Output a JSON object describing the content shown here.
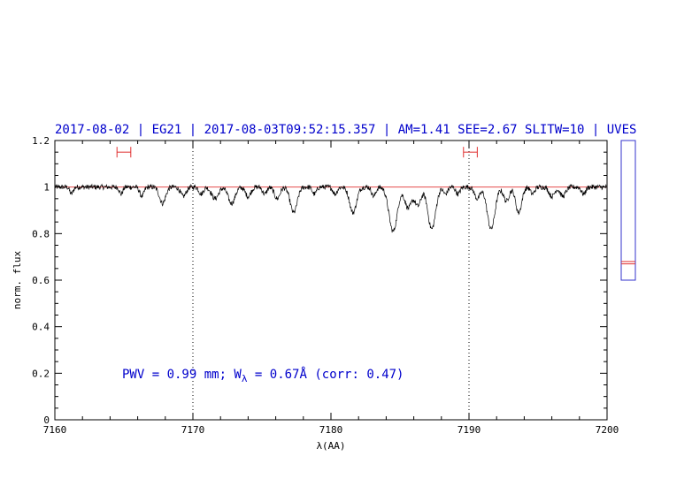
{
  "chart_data": {
    "type": "line",
    "title": "2017-08-02 | EG21 | 2017-08-03T09:52:15.357 | AM=1.41 SEE=2.67 SLITW=10 | UVES",
    "xlabel": "λ(AA)",
    "ylabel": "norm. flux",
    "xlim": [
      7160,
      7200
    ],
    "ylim": [
      0,
      1.2
    ],
    "xticks": [
      7160,
      7170,
      7180,
      7190,
      7200
    ],
    "xtick_labels": [
      "7160",
      "7170",
      "7180",
      "7190",
      "7200"
    ],
    "yticks": [
      0,
      0.2,
      0.4,
      0.6,
      0.8,
      1,
      1.2
    ],
    "ytick_labels": [
      "0",
      "0.2",
      "0.4",
      "0.6",
      "0.8",
      "1",
      "1.2"
    ],
    "grid": false,
    "continuum": {
      "y": 1.0,
      "color": "#e03030"
    },
    "vertical_markers": [
      7170,
      7190
    ],
    "error_bars": [
      {
        "x1": 7164.5,
        "x2": 7165.5,
        "y": 1.15,
        "color": "#e03030"
      },
      {
        "x1": 7189.6,
        "x2": 7190.6,
        "y": 1.15,
        "color": "#e03030"
      }
    ],
    "absorption_lines": [
      {
        "x": 7161.2,
        "depth": 0.03,
        "width": 0.12
      },
      {
        "x": 7164.8,
        "depth": 0.03,
        "width": 0.12
      },
      {
        "x": 7166.3,
        "depth": 0.04,
        "width": 0.15
      },
      {
        "x": 7167.8,
        "depth": 0.07,
        "width": 0.22
      },
      {
        "x": 7169.3,
        "depth": 0.04,
        "width": 0.2
      },
      {
        "x": 7170.6,
        "depth": 0.03,
        "width": 0.15
      },
      {
        "x": 7171.6,
        "depth": 0.05,
        "width": 0.25
      },
      {
        "x": 7172.8,
        "depth": 0.07,
        "width": 0.25
      },
      {
        "x": 7174.0,
        "depth": 0.04,
        "width": 0.2
      },
      {
        "x": 7175.2,
        "depth": 0.03,
        "width": 0.15
      },
      {
        "x": 7176.1,
        "depth": 0.05,
        "width": 0.2
      },
      {
        "x": 7177.3,
        "depth": 0.11,
        "width": 0.25
      },
      {
        "x": 7178.8,
        "depth": 0.03,
        "width": 0.15
      },
      {
        "x": 7180.3,
        "depth": 0.03,
        "width": 0.15
      },
      {
        "x": 7181.6,
        "depth": 0.11,
        "width": 0.25
      },
      {
        "x": 7183.1,
        "depth": 0.04,
        "width": 0.15
      },
      {
        "x": 7184.5,
        "depth": 0.19,
        "width": 0.3
      },
      {
        "x": 7185.6,
        "depth": 0.09,
        "width": 0.25
      },
      {
        "x": 7186.3,
        "depth": 0.08,
        "width": 0.22
      },
      {
        "x": 7187.3,
        "depth": 0.18,
        "width": 0.28
      },
      {
        "x": 7188.3,
        "depth": 0.03,
        "width": 0.15
      },
      {
        "x": 7189.2,
        "depth": 0.03,
        "width": 0.15
      },
      {
        "x": 7190.6,
        "depth": 0.05,
        "width": 0.2
      },
      {
        "x": 7191.6,
        "depth": 0.18,
        "width": 0.28
      },
      {
        "x": 7192.7,
        "depth": 0.06,
        "width": 0.2
      },
      {
        "x": 7193.6,
        "depth": 0.11,
        "width": 0.22
      },
      {
        "x": 7194.6,
        "depth": 0.03,
        "width": 0.15
      },
      {
        "x": 7196.0,
        "depth": 0.04,
        "width": 0.2
      },
      {
        "x": 7196.8,
        "depth": 0.04,
        "width": 0.2
      },
      {
        "x": 7198.3,
        "depth": 0.03,
        "width": 0.15
      }
    ],
    "annotation": {
      "prefix": "PWV = 0.99 mm; W",
      "subscript": "λ",
      "suffix": " = 0.67Å (corr: 0.47)"
    },
    "side_panel": {
      "ylim": [
        0,
        1.2
      ],
      "range": [
        0.6,
        1.2
      ],
      "markers": [
        0.68,
        0.67
      ],
      "marker_color": "#e03030",
      "frame_color": "#3333cc"
    },
    "colors": {
      "spectrum": "#000000",
      "continuum": "#e03030",
      "title": "#0000cc",
      "annotation": "#0000cc"
    }
  }
}
